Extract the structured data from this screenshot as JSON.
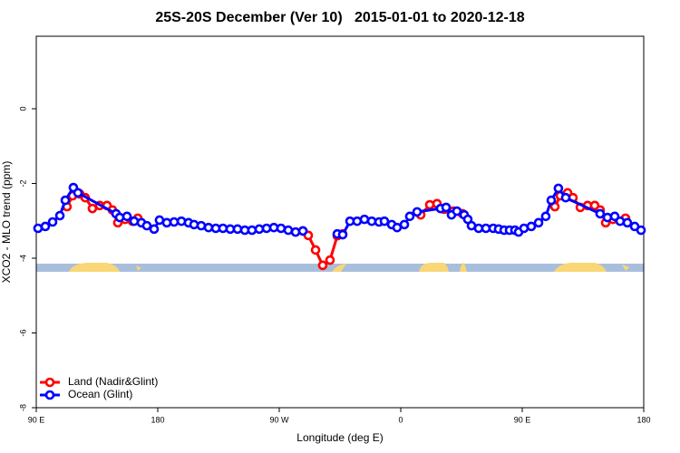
{
  "chart_data": {
    "type": "line",
    "title": "25S-20S December (Ver 10)   2015-01-01 to 2020-12-18",
    "xlabel": "Longitude (deg E)",
    "ylabel": "XCO2 - MLO trend (ppm)",
    "xlim": [
      90,
      540
    ],
    "ylim": [
      -8,
      1.94
    ],
    "xticks": [
      {
        "value": 90,
        "label": "90 E"
      },
      {
        "value": 180,
        "label": "180"
      },
      {
        "value": 270,
        "label": "90 W"
      },
      {
        "value": 360,
        "label": "0"
      },
      {
        "value": 450,
        "label": "90 E"
      },
      {
        "value": 540,
        "label": "180"
      }
    ],
    "yticks": [
      -8,
      -6,
      -4,
      -2,
      0
    ],
    "legend": "bottom-left",
    "series": [
      {
        "name": "Land (Nadir&Glint)",
        "color": "#ff0000",
        "x": [
          112.8,
          116.9,
          122.2,
          126.3,
          131.6,
          137.0,
          142.4,
          146.4,
          150.4,
          155.8,
          161.2,
          165.2,
          null,
          282.1,
          287.5,
          291.5,
          296.9,
          302.2,
          307.6,
          313.0,
          317.0,
          null,
          374.8,
          381.5,
          386.9,
          392.2,
          398.9,
          405.7,
          null,
          474.2,
          478.2,
          483.6,
          487.6,
          493.0,
          498.4,
          503.7,
          507.7,
          511.8,
          517.1,
          526.5
        ],
        "values": [
          -2.62,
          -2.33,
          -2.28,
          -2.38,
          -2.67,
          -2.59,
          -2.59,
          -2.71,
          -3.05,
          -2.96,
          -3.01,
          -2.93,
          null,
          -3.3,
          -3.27,
          -3.39,
          -3.78,
          -4.19,
          -4.05,
          -3.4,
          -3.35,
          null,
          -2.84,
          -2.57,
          -2.54,
          -2.69,
          -2.74,
          -2.81,
          null,
          -2.62,
          -2.33,
          -2.25,
          -2.38,
          -2.64,
          -2.59,
          -2.59,
          -2.71,
          -3.05,
          -2.96,
          -2.93
        ]
      },
      {
        "name": "Ocean (Glint)",
        "color": "#0000ff",
        "x": [
          91.3,
          96.7,
          102.1,
          107.5,
          111.5,
          117.5,
          120.9,
          149.1,
          151.8,
          157.2,
          162.5,
          167.9,
          171.9,
          177.3,
          181.3,
          186.7,
          192.1,
          197.5,
          202.8,
          206.9,
          212.2,
          217.6,
          223.0,
          228.3,
          233.7,
          239.1,
          244.5,
          249.8,
          255.2,
          260.6,
          266.0,
          271.3,
          276.7,
          282.1,
          287.5,
          null,
          313.0,
          317.0,
          322.4,
          327.7,
          333.1,
          338.5,
          343.9,
          347.9,
          353.3,
          357.3,
          362.7,
          366.7,
          372.1,
          389.5,
          393.6,
          397.6,
          401.6,
          407.0,
          409.7,
          412.4,
          417.7,
          423.1,
          428.5,
          432.5,
          436.6,
          440.6,
          444.6,
          447.3,
          451.3,
          456.7,
          462.1,
          467.4,
          471.5,
          476.8,
          482.2,
          507.7,
          513.1,
          518.5,
          522.5,
          527.9,
          533.3,
          538.0
        ],
        "values": [
          -3.2,
          -3.15,
          -3.03,
          -2.86,
          -2.45,
          -2.11,
          -2.25,
          -2.81,
          -2.91,
          -2.88,
          -3.01,
          -3.05,
          -3.13,
          -3.22,
          -2.98,
          -3.05,
          -3.03,
          -3.01,
          -3.05,
          -3.1,
          -3.13,
          -3.18,
          -3.2,
          -3.2,
          -3.22,
          -3.22,
          -3.25,
          -3.25,
          -3.22,
          -3.2,
          -3.18,
          -3.2,
          -3.25,
          -3.3,
          -3.27,
          null,
          -3.35,
          -3.37,
          -3.01,
          -3.01,
          -2.96,
          -3.01,
          -3.03,
          -3.01,
          -3.1,
          -3.18,
          -3.1,
          -2.88,
          -2.76,
          -2.67,
          -2.64,
          -2.84,
          -2.74,
          -2.84,
          -2.96,
          -3.13,
          -3.2,
          -3.2,
          -3.2,
          -3.22,
          -3.25,
          -3.25,
          -3.25,
          -3.3,
          -3.2,
          -3.15,
          -3.05,
          -2.88,
          -2.45,
          -2.13,
          -2.38,
          -2.81,
          -2.91,
          -2.88,
          -3.01,
          -3.05,
          -3.15,
          -3.25
        ]
      }
    ]
  }
}
